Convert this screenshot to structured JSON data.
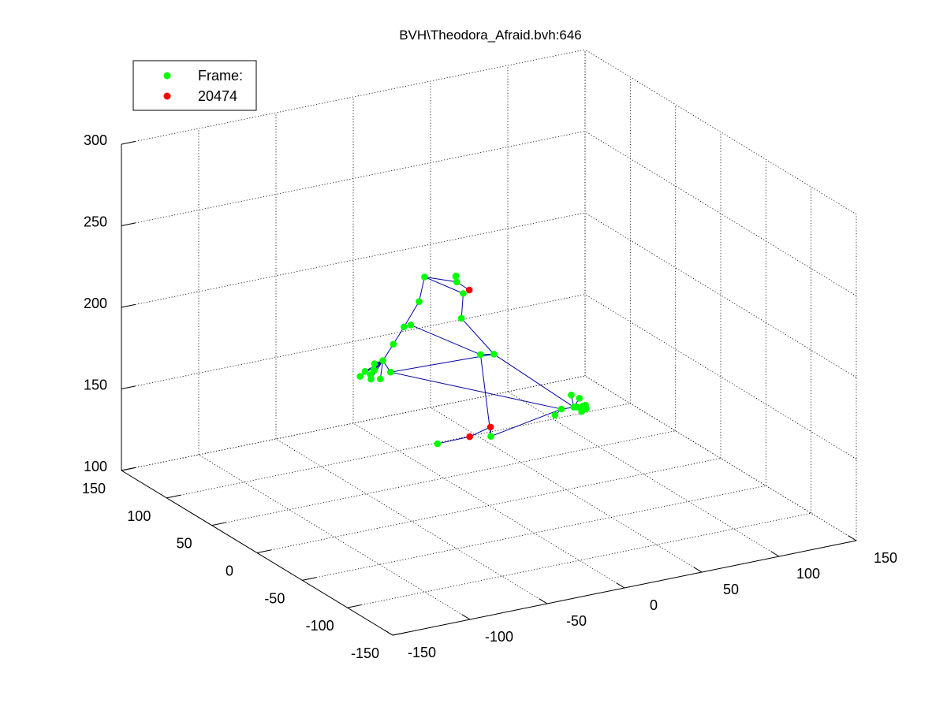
{
  "chart_data": {
    "type": "scatter",
    "title": "BVH\\Theodora_Afraid.bvh:646",
    "xlabel": "",
    "ylabel": "",
    "zlabel": "",
    "xlim": [
      -150,
      150
    ],
    "ylim": [
      -150,
      150
    ],
    "zlim": [
      100,
      300
    ],
    "x_ticks": [
      "-150",
      "-100",
      "-50",
      "0",
      "50",
      "100",
      "150"
    ],
    "y_ticks": [
      "-150",
      "-100",
      "-50",
      "0",
      "50",
      "100",
      "150"
    ],
    "z_ticks": [
      "100",
      "150",
      "200",
      "250",
      "300"
    ],
    "grid": true,
    "legend_position": "top-left",
    "series": [
      {
        "name": "Frame:",
        "color": "#00ff00",
        "points": [
          [
            -0.8,
            69.8,
            216.8
          ],
          [
            14.2,
            59.8,
            214.2
          ],
          [
            18.0,
            67.0,
            214.7
          ],
          [
            14.0,
            52.3,
            209.7
          ],
          [
            20.0,
            70.8,
            212.8
          ],
          [
            -4.2,
            70.0,
            202.3
          ],
          [
            -17.3,
            64.3,
            191.2
          ],
          [
            -12.5,
            65.0,
            191.2
          ],
          [
            16.0,
            57.7,
            192.3
          ],
          [
            -25.4,
            62.3,
            182.8
          ],
          [
            -36.3,
            55.2,
            177.3
          ],
          [
            -40.5,
            57.3,
            175.5
          ],
          [
            -42.2,
            55.3,
            172.8
          ],
          [
            -41.3,
            56.0,
            172.0
          ],
          [
            -48.0,
            55.0,
            173.0
          ],
          [
            -48.0,
            48.3,
            170.5
          ],
          [
            -51.7,
            54.0,
            171.0
          ],
          [
            -45.3,
            53.5,
            171.0
          ],
          [
            -33.2,
            52.0,
            170.7
          ],
          [
            -41.0,
            50.0,
            168.7
          ],
          [
            26.6,
            54.7,
            169.0
          ],
          [
            36.0,
            56.0,
            167.0
          ],
          [
            29.2,
            -30.3,
            163.7
          ],
          [
            40.0,
            -35.3,
            165.2
          ],
          [
            35.1,
            -34.0,
            165.0
          ],
          [
            42.0,
            -28.3,
            167.2
          ],
          [
            44.1,
            -32.3,
            161.7
          ],
          [
            45.0,
            -30.0,
            163.0
          ],
          [
            42.0,
            -26.0,
            161.0
          ],
          [
            40.9,
            -21.2,
            167.0
          ],
          [
            38.0,
            -37.7,
            163.0
          ],
          [
            28.5,
            -24.5,
            158.2
          ],
          [
            -10.6,
            -20.3,
            151.3
          ],
          [
            -42.2,
            -15.3,
            151.2
          ]
        ]
      },
      {
        "name": "20474",
        "color": "#ff0000",
        "points": [
          [
            19.7,
            55.3,
            209.7
          ],
          [
            -11.4,
            -21.3,
            157.5
          ],
          [
            -24.9,
            -21.3,
            154.2
          ]
        ]
      }
    ],
    "edges": [
      [
        0,
        1
      ],
      [
        1,
        34
      ],
      [
        1,
        2
      ],
      [
        2,
        4
      ],
      [
        0,
        3
      ],
      [
        0,
        5
      ],
      [
        3,
        8
      ],
      [
        8,
        21
      ],
      [
        21,
        20
      ],
      [
        20,
        32
      ],
      [
        5,
        6
      ],
      [
        6,
        7
      ],
      [
        7,
        20
      ],
      [
        6,
        9
      ],
      [
        9,
        10
      ],
      [
        10,
        11
      ],
      [
        10,
        12
      ],
      [
        10,
        13
      ],
      [
        10,
        14
      ],
      [
        10,
        15
      ],
      [
        10,
        16
      ],
      [
        10,
        17
      ],
      [
        10,
        18
      ],
      [
        10,
        19
      ],
      [
        18,
        21
      ],
      [
        18,
        22
      ],
      [
        22,
        23
      ],
      [
        21,
        24
      ],
      [
        24,
        25
      ],
      [
        24,
        26
      ],
      [
        24,
        27
      ],
      [
        24,
        28
      ],
      [
        24,
        29
      ],
      [
        24,
        30
      ],
      [
        22,
        31
      ],
      [
        22,
        32
      ],
      [
        32,
        35
      ],
      [
        35,
        36
      ],
      [
        36,
        33
      ]
    ],
    "line_color": "#0000a0"
  },
  "legend": {
    "items": [
      {
        "label": "Frame:",
        "color": "#00ff00"
      },
      {
        "label": "20474",
        "color": "#ff0000"
      }
    ]
  }
}
